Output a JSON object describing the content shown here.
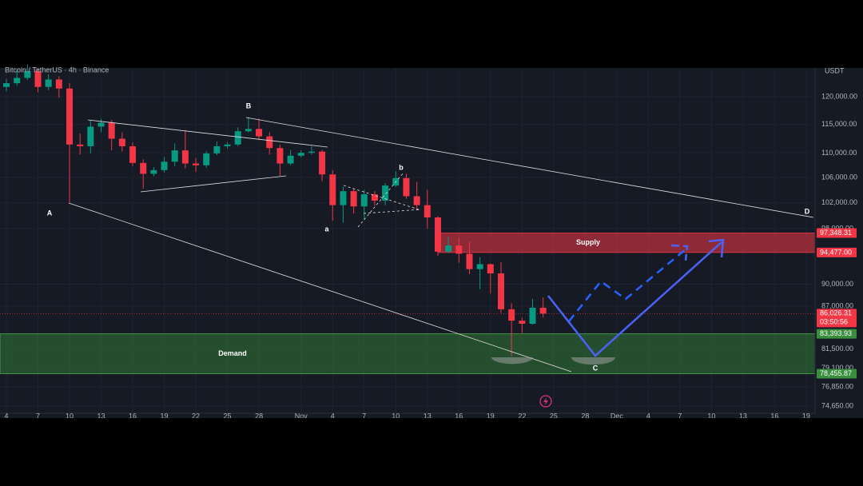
{
  "chart_data": {
    "type": "candlestick",
    "title": "Bitcoin / TetherUS · 4h · Binance",
    "currency": "USDT",
    "log_scale": true,
    "grid": true,
    "up_color": "#089981",
    "down_color": "#f23645",
    "ylim": [
      73830,
      125400
    ],
    "yticks": [
      {
        "value": 120000,
        "label": "120,000.00"
      },
      {
        "value": 115000,
        "label": "115,000.00"
      },
      {
        "value": 110000,
        "label": "110,000.00"
      },
      {
        "value": 106000,
        "label": "106,000.00"
      },
      {
        "value": 102000,
        "label": "102,000.00"
      },
      {
        "value": 98000,
        "label": "98,000.00"
      },
      {
        "value": 90000,
        "label": "90,000.00"
      },
      {
        "value": 87000,
        "label": "87,000.00"
      },
      {
        "value": 81500,
        "label": "81,500.00"
      },
      {
        "value": 79100,
        "label": "79,100.00"
      },
      {
        "value": 76850,
        "label": "76,850.00"
      },
      {
        "value": 74650,
        "label": "74,650.00"
      }
    ],
    "xticks": [
      "4",
      "7",
      "10",
      "13",
      "16",
      "19",
      "22",
      "25",
      "28",
      "Nov",
      "4",
      "7",
      "10",
      "13",
      "16",
      "19",
      "22",
      "25",
      "28",
      "Dec",
      "4",
      "7",
      "10",
      "13",
      "16",
      "19"
    ],
    "open": [
      121800,
      122500,
      123500,
      124800,
      121800,
      123200,
      121500,
      111500,
      111200,
      114600,
      115300,
      112500,
      111200,
      108400,
      106600,
      107200,
      108600,
      110500,
      108300,
      108000,
      110000,
      111200,
      111500,
      113800,
      114200,
      112900,
      110900,
      108300,
      109600,
      110100,
      110300,
      106500,
      101600,
      103800,
      101400,
      103300,
      102300,
      104700,
      105900,
      103000,
      101600,
      99700,
      94600,
      95500,
      94300,
      92100,
      92800,
      91500,
      86600,
      85100,
      84700,
      86800
    ],
    "high": [
      123300,
      125000,
      126100,
      125200,
      124200,
      123800,
      122500,
      113400,
      115800,
      116000,
      115800,
      113600,
      111900,
      109000,
      107700,
      109400,
      111700,
      114000,
      109200,
      110400,
      112000,
      111900,
      114500,
      116300,
      116000,
      113600,
      111500,
      110600,
      110500,
      111200,
      110600,
      107200,
      104500,
      104200,
      104000,
      103800,
      105100,
      107000,
      106600,
      105300,
      104000,
      99900,
      96800,
      96600,
      96000,
      93800,
      92900,
      93100,
      87400,
      85500,
      88000,
      88200
    ],
    "low": [
      121000,
      122000,
      123100,
      120800,
      121200,
      119800,
      102000,
      109800,
      110000,
      113600,
      110500,
      110300,
      107900,
      104200,
      106200,
      106800,
      107900,
      107500,
      106900,
      107600,
      109700,
      110800,
      111200,
      113600,
      112300,
      109800,
      106300,
      108000,
      109300,
      109800,
      105400,
      99200,
      98900,
      100300,
      99300,
      101500,
      101600,
      104500,
      102600,
      100800,
      98000,
      94000,
      94400,
      93000,
      91400,
      89300,
      88700,
      86100,
      80600,
      83500,
      84600,
      85500
    ],
    "close": [
      122500,
      123500,
      124800,
      121800,
      123200,
      121500,
      111500,
      111200,
      114600,
      115300,
      112500,
      111200,
      108400,
      106600,
      107200,
      108600,
      110500,
      108300,
      108000,
      110000,
      111200,
      111500,
      113800,
      114200,
      112900,
      110900,
      108300,
      109600,
      110100,
      110300,
      106500,
      101600,
      103800,
      101400,
      103300,
      102300,
      104700,
      105900,
      103000,
      101600,
      99700,
      94600,
      95500,
      94300,
      92100,
      92800,
      91500,
      86600,
      85100,
      84700,
      86800,
      86026.31
    ],
    "last_price": {
      "value": 86026.31,
      "label": "86,026.31"
    },
    "countdown": "03:50:56",
    "zones": [
      {
        "name": "Supply",
        "top": {
          "value": 97348.31,
          "label": "97,348.31"
        },
        "bottom": {
          "value": 94477,
          "label": "94,477.00"
        }
      },
      {
        "name": "Demand",
        "top": {
          "value": 83393.93,
          "label": "83,393.93"
        },
        "bottom": {
          "value": 78455.87,
          "label": "78,455.87"
        }
      }
    ],
    "waves": [
      "A",
      "B",
      "a",
      "b",
      "C",
      "D"
    ]
  }
}
